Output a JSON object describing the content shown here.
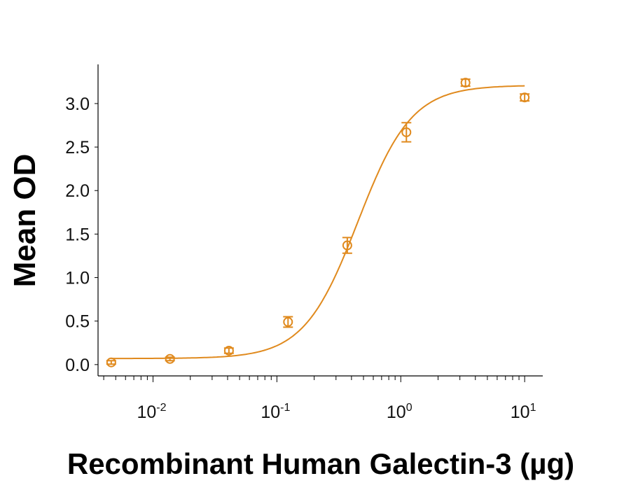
{
  "chart_data": {
    "type": "scatter",
    "title": "",
    "xlabel": "Recombinant Human Galectin-3 (µg)",
    "ylabel": "Mean OD",
    "x_scale": "log",
    "xlim": [
      0.0036,
      14
    ],
    "ylim": [
      -0.13,
      3.45
    ],
    "x_ticks": [
      {
        "value": 0.01,
        "base": "10",
        "exp": "-2"
      },
      {
        "value": 0.1,
        "base": "10",
        "exp": "-1"
      },
      {
        "value": 1,
        "base": "10",
        "exp": "0"
      },
      {
        "value": 10,
        "base": "10",
        "exp": "1"
      }
    ],
    "y_ticks": [
      {
        "value": 0.0,
        "label": "0.0"
      },
      {
        "value": 0.5,
        "label": "0.5"
      },
      {
        "value": 1.0,
        "label": "1.0"
      },
      {
        "value": 1.5,
        "label": "1.5"
      },
      {
        "value": 2.0,
        "label": "2.0"
      },
      {
        "value": 2.5,
        "label": "2.5"
      },
      {
        "value": 3.0,
        "label": "3.0"
      }
    ],
    "grid": false,
    "color": "#E08A1E",
    "series": [
      {
        "points": [
          {
            "x": 0.0046,
            "y": 0.025,
            "err": 0.02
          },
          {
            "x": 0.0137,
            "y": 0.065,
            "err": 0.02
          },
          {
            "x": 0.041,
            "y": 0.16,
            "err": 0.03
          },
          {
            "x": 0.123,
            "y": 0.49,
            "err": 0.06
          },
          {
            "x": 0.37,
            "y": 1.37,
            "err": 0.09
          },
          {
            "x": 1.11,
            "y": 2.67,
            "err": 0.11
          },
          {
            "x": 3.33,
            "y": 3.24,
            "err": 0.04
          },
          {
            "x": 10,
            "y": 3.07,
            "err": 0.04
          }
        ],
        "fit": {
          "model": "4PL",
          "bottom": 0.07,
          "top": 3.21,
          "ec50": 0.45,
          "hill": 2.0
        }
      }
    ]
  }
}
